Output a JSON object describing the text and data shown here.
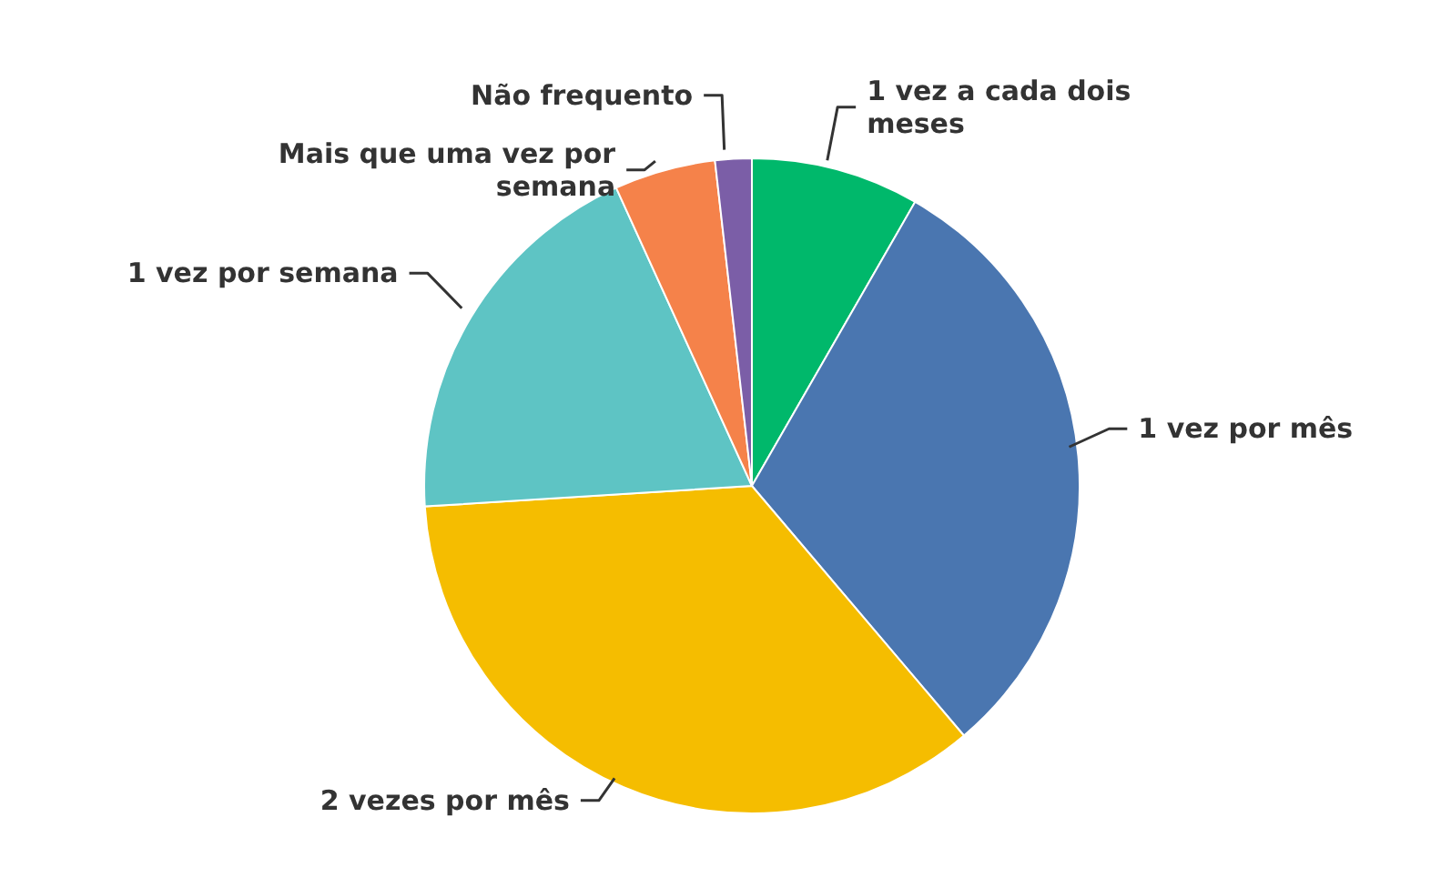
{
  "chart_data": {
    "type": "pie",
    "categories": [
      "1 vez a cada dois meses",
      "1 vez por mês",
      "2 vezes por mês",
      "1 vez por semana",
      "Mais que uma vez por semana",
      "Não frequento"
    ],
    "values": [
      8.3,
      30.5,
      35.2,
      19.2,
      5,
      1.8
    ],
    "colors": [
      "#00b86b",
      "#4a76b0",
      "#f5bd00",
      "#5ec4c4",
      "#f5824a",
      "#7b5ea7"
    ],
    "legend": false
  }
}
